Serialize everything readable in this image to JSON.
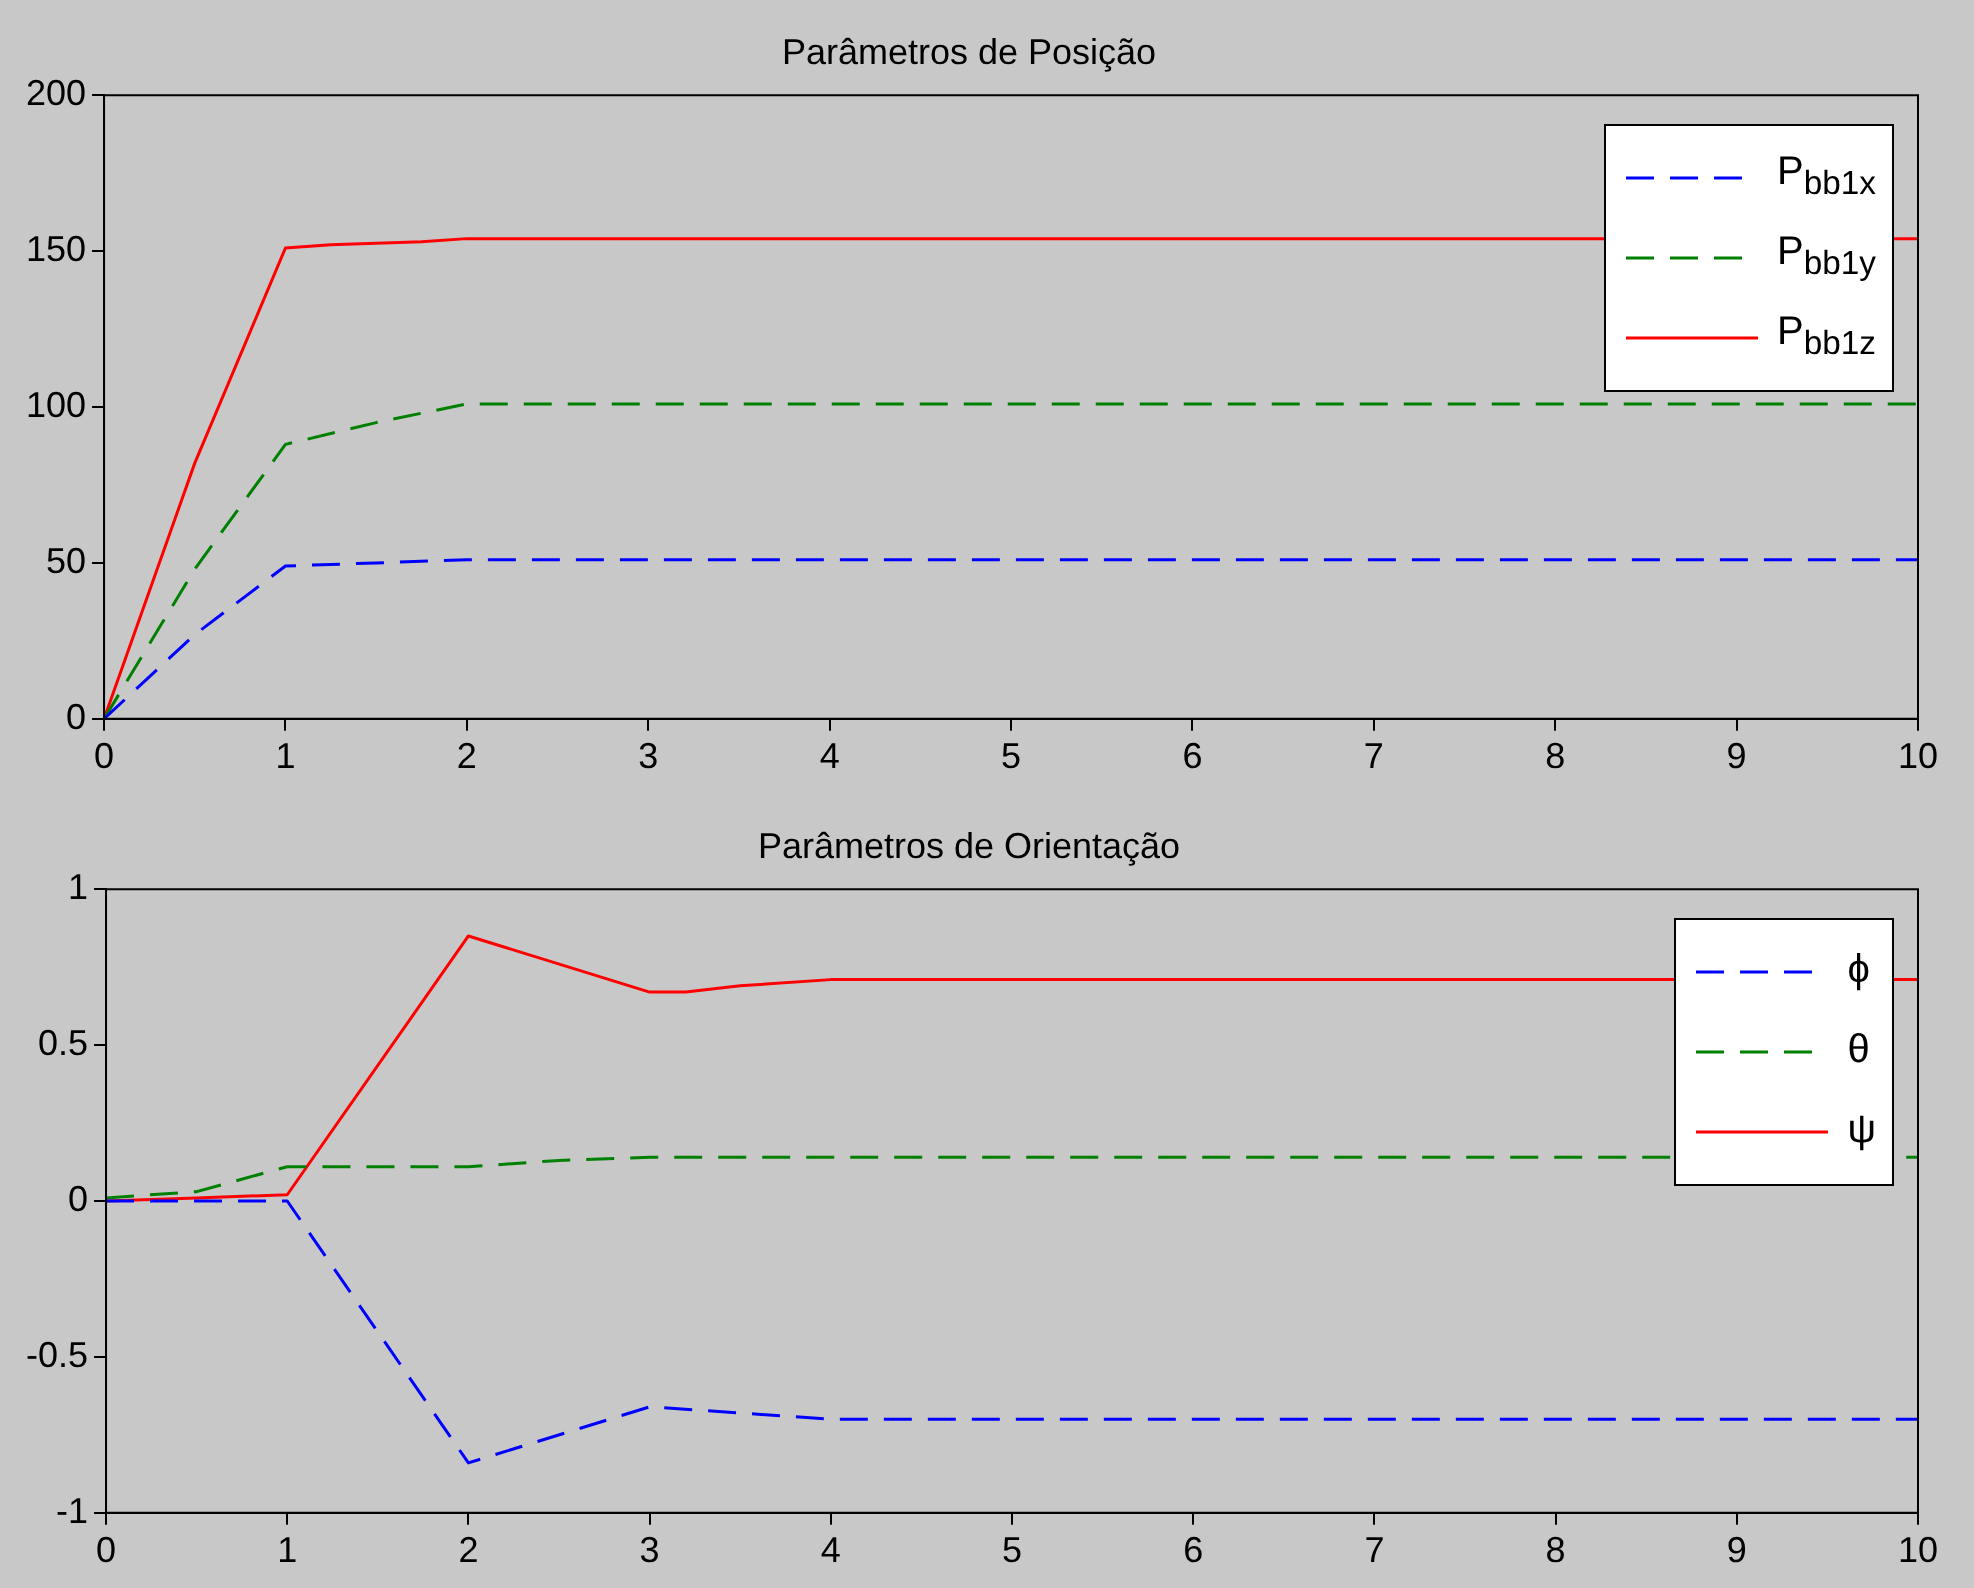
{
  "chart_data": [
    {
      "type": "line",
      "title": "Parâmetros de Posição",
      "xlim": [
        0,
        10
      ],
      "xticks": [
        0,
        1,
        2,
        3,
        4,
        5,
        6,
        7,
        8,
        9,
        10
      ],
      "ylim": [
        0,
        200
      ],
      "yticks": [
        0,
        50,
        100,
        150,
        200
      ],
      "grid": false,
      "legend": "top right",
      "marker": "none",
      "series": [
        {
          "name": "P$_{bb1x}$",
          "color": "#0000ff",
          "line_style": "dashed",
          "x": [
            0,
            0.5,
            1,
            1.5,
            2,
            3,
            10
          ],
          "values": [
            0,
            27,
            49,
            50,
            51,
            51,
            51
          ]
        },
        {
          "name": "P$_{bb1y}$",
          "color": "#008000",
          "line_style": "dashed",
          "x": [
            0,
            0.5,
            1,
            1.5,
            2,
            3,
            10
          ],
          "values": [
            0,
            48,
            88,
            95,
            101,
            101,
            101
          ]
        },
        {
          "name": "P$_{bb1z}$",
          "color": "#ff0000",
          "line_style": "solid",
          "x": [
            0,
            0.5,
            1,
            1.25,
            1.75,
            2,
            3,
            10
          ],
          "values": [
            0,
            82,
            151,
            152,
            153,
            154,
            154,
            154
          ]
        }
      ]
    },
    {
      "type": "line",
      "title": "Parâmetros de Orientação",
      "xlim": [
        0,
        10
      ],
      "xticks": [
        0,
        1,
        2,
        3,
        4,
        5,
        6,
        7,
        8,
        9,
        10
      ],
      "ylim": [
        -1,
        1
      ],
      "yticks": [
        -1,
        -0.5,
        0,
        0.5,
        1
      ],
      "grid": false,
      "legend": "top right",
      "marker": "none",
      "series": [
        {
          "name": "ϕ",
          "color": "#0000ff",
          "line_style": "dashed",
          "x": [
            0,
            0.5,
            1,
            2,
            3,
            3.5,
            4,
            10
          ],
          "values": [
            0,
            0,
            0,
            -0.84,
            -0.66,
            -0.68,
            -0.7,
            -0.7
          ]
        },
        {
          "name": "θ",
          "color": "#008000",
          "line_style": "dashed",
          "x": [
            0,
            0.5,
            1,
            2,
            2.5,
            3,
            10
          ],
          "values": [
            0.01,
            0.03,
            0.11,
            0.11,
            0.13,
            0.14,
            0.14
          ]
        },
        {
          "name": "ψ",
          "color": "#ff0000",
          "line_style": "solid",
          "x": [
            0,
            0.5,
            1,
            2,
            3,
            3.2,
            3.5,
            4,
            10
          ],
          "values": [
            0,
            0.01,
            0.02,
            0.85,
            0.67,
            0.67,
            0.69,
            0.71,
            0.71
          ]
        }
      ]
    }
  ]
}
